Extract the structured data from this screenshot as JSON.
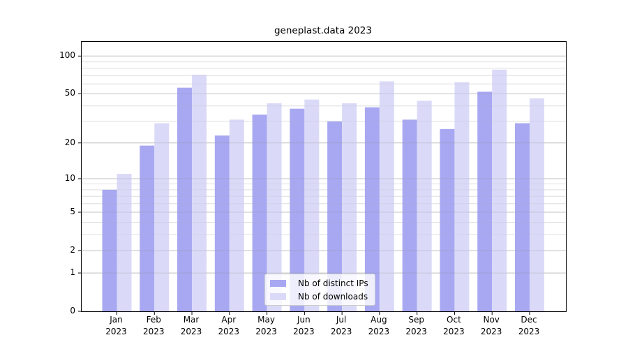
{
  "title": "geneplast.data 2023",
  "colors": {
    "ips": "#a8a8f2",
    "downloads": "#dadaf8",
    "grid_major": "#d8d8d8",
    "grid_minor": "#ececec",
    "grid_overlay_major": "rgba(130,130,130,0.25)",
    "grid_overlay_minor": "rgba(170,170,170,0.18)",
    "axis": "#000000",
    "legend_border": "#cccccc"
  },
  "legend": {
    "items": [
      {
        "label": "Nb of distinct IPs",
        "series": "ips"
      },
      {
        "label": "Nb of downloads",
        "series": "downloads"
      }
    ]
  },
  "chart_data": {
    "type": "bar",
    "title": "geneplast.data 2023",
    "categories": [
      "Jan",
      "Feb",
      "Mar",
      "Apr",
      "May",
      "Jun",
      "Jul",
      "Aug",
      "Sep",
      "Oct",
      "Nov",
      "Dec"
    ],
    "year": "2023",
    "series": [
      {
        "name": "Nb of distinct IPs",
        "key": "ips",
        "values": [
          8,
          19,
          56,
          23,
          34,
          38,
          30,
          39,
          31,
          26,
          52,
          29
        ]
      },
      {
        "name": "Nb of downloads",
        "key": "downloads",
        "values": [
          11,
          29,
          71,
          31,
          42,
          45,
          42,
          63,
          44,
          62,
          78,
          46
        ]
      }
    ],
    "xlabel": "",
    "ylabel": "",
    "yscale": "log(v+1)",
    "yticks": [
      0,
      1,
      2,
      5,
      10,
      20,
      50,
      100
    ],
    "minor_gridlines": [
      3,
      4,
      6,
      7,
      8,
      9,
      30,
      40,
      60,
      70,
      80,
      90
    ],
    "ylim": [
      0,
      130
    ],
    "grid": true,
    "legend_position": "lower center"
  }
}
